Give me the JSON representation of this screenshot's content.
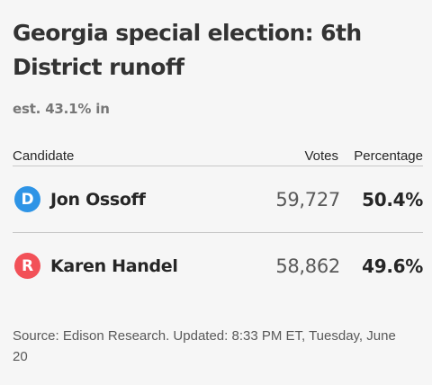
{
  "title": "Georgia special election: 6th District runoff",
  "reporting": "est. 43.1% in",
  "table": {
    "headers": {
      "candidate": "Candidate",
      "votes": "Votes",
      "percentage": "Percentage"
    },
    "rows": [
      {
        "party": "D",
        "party_color": "#2e94e6",
        "name": "Jon Ossoff",
        "votes": "59,727",
        "percentage": "50.4%"
      },
      {
        "party": "R",
        "party_color": "#f25158",
        "name": "Karen Handel",
        "votes": "58,862",
        "percentage": "49.6%"
      }
    ]
  },
  "source": "Source: Edison Research. Updated: 8:33 PM ET, Tuesday, June 20"
}
